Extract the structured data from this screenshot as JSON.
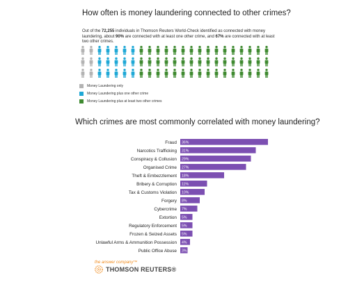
{
  "section1": {
    "title": "How often is money laundering connected to other crimes?",
    "intro_parts": [
      {
        "text": "Out of the ",
        "bold": false
      },
      {
        "text": "72,255",
        "bold": true
      },
      {
        "text": " individuals in Thomson Reuters World-Check identified as connected with money laundering, about ",
        "bold": false
      },
      {
        "text": "90%",
        "bold": true
      },
      {
        "text": " are connected with at least one other crime, and ",
        "bold": false
      },
      {
        "text": "67%",
        "bold": true
      },
      {
        "text": " are connected with at least two other crimes.",
        "bold": false
      }
    ],
    "people_grid": {
      "rows": 3,
      "columns": 23,
      "counts": {
        "only": 2,
        "plus_one": 5,
        "plus_two": 16
      }
    },
    "legend": [
      {
        "label": "Money Laundering only",
        "color": "#b3b3b3",
        "icon": "gray-square"
      },
      {
        "label": "Money Laundering plus one other crime",
        "color": "#1fa8d6",
        "icon": "blue-square"
      },
      {
        "label": "Money Laundering plus at least two other crimes",
        "color": "#3f8a30",
        "icon": "green-square"
      }
    ]
  },
  "section2": {
    "title": "Which crimes are most commonly correlated with money laundering?"
  },
  "chart_data": {
    "type": "bar",
    "orientation": "horizontal",
    "categories": [
      "Fraud",
      "Narcotics Trafficking",
      "Conspiracy & Collusion",
      "Organised Crime",
      "Theft & Embezzlement",
      "Bribery & Corruption",
      "Tax & Customs Violation",
      "Forgery",
      "Cybercrime",
      "Extortion",
      "Regulatory Enforcement",
      "Frozen & Seized Assets",
      "Unlawful Arms & Ammunition Possession",
      "Public Office Abuse"
    ],
    "values": [
      36,
      31,
      29,
      27,
      18,
      11,
      10,
      8,
      7,
      5,
      5,
      5,
      4,
      3
    ],
    "value_labels": [
      "36%",
      "31%",
      "29%",
      "27%",
      "18%",
      "11%",
      "10%",
      "8%",
      "7%",
      "5%",
      "5%",
      "5%",
      "4%",
      "3%"
    ],
    "bar_color": "#7c4fb2",
    "title": "Which crimes are most commonly correlated with money laundering?",
    "xlabel": "",
    "ylabel": "",
    "xlim": [
      0,
      36
    ]
  },
  "brand": {
    "tagline": "the answer company™",
    "name": "THOMSON REUTERS®",
    "accent": "#f08a1b"
  }
}
